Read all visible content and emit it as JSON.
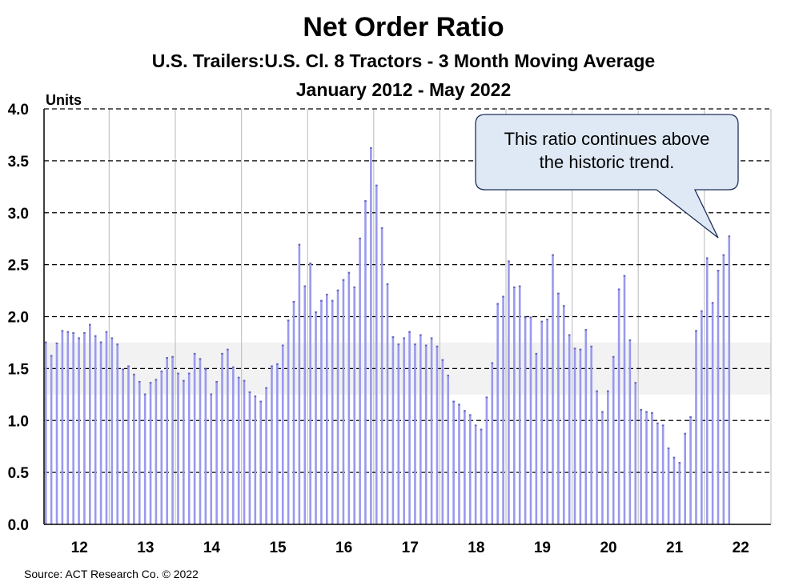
{
  "chart_data": {
    "type": "bar",
    "title": "Net Order Ratio",
    "subtitle1": "U.S. Trailers:U.S. Cl. 8 Tractors - 3 Month Moving Average",
    "subtitle2": "January 2012 - May 2022",
    "ylabel": "Units",
    "ylim": [
      0,
      4
    ],
    "yticks": [
      "0.0",
      "0.5",
      "1.0",
      "1.5",
      "2.0",
      "2.5",
      "3.0",
      "3.5",
      "4.0"
    ],
    "xticks": [
      "12",
      "13",
      "14",
      "15",
      "16",
      "17",
      "18",
      "19",
      "20",
      "21",
      "22"
    ],
    "start": "2012-01",
    "frequency": "monthly",
    "historic_band": [
      1.25,
      1.75
    ],
    "values": [
      1.76,
      1.63,
      1.75,
      1.87,
      1.86,
      1.85,
      1.8,
      1.85,
      1.93,
      1.82,
      1.76,
      1.86,
      1.8,
      1.74,
      1.5,
      1.53,
      1.45,
      1.38,
      1.26,
      1.37,
      1.4,
      1.48,
      1.61,
      1.62,
      1.46,
      1.39,
      1.46,
      1.65,
      1.6,
      1.5,
      1.26,
      1.38,
      1.65,
      1.69,
      1.52,
      1.42,
      1.39,
      1.28,
      1.24,
      1.19,
      1.32,
      1.53,
      1.55,
      1.73,
      1.97,
      2.15,
      2.7,
      2.3,
      2.52,
      2.05,
      2.16,
      2.22,
      2.16,
      2.26,
      2.36,
      2.43,
      2.29,
      2.76,
      3.12,
      3.63,
      3.27,
      2.86,
      2.32,
      1.81,
      1.74,
      1.8,
      1.86,
      1.74,
      1.83,
      1.73,
      1.8,
      1.72,
      1.59,
      1.44,
      1.19,
      1.16,
      1.1,
      1.06,
      0.96,
      0.92,
      1.23,
      1.56,
      2.13,
      2.2,
      2.54,
      2.29,
      2.3,
      2.0,
      2.0,
      1.65,
      1.96,
      1.98,
      2.6,
      2.23,
      2.11,
      1.83,
      1.7,
      1.69,
      1.88,
      1.72,
      1.29,
      1.09,
      1.29,
      1.62,
      2.27,
      2.4,
      1.78,
      1.37,
      1.11,
      1.09,
      1.08,
      0.98,
      0.96,
      0.74,
      0.65,
      0.6,
      0.88,
      1.04,
      1.87,
      2.06,
      2.57,
      2.14,
      2.45,
      2.6,
      2.78
    ],
    "annotation": [
      "This ratio continues above",
      "the historic trend."
    ],
    "source": "Source: ACT Research Co. © 2022",
    "colors": {
      "bar": "#9999ee",
      "bar_top": "#6666bb",
      "band": "#f2f2f2",
      "callout_fill": "#dfe9f5",
      "callout_border": "#1f2f5a"
    }
  }
}
